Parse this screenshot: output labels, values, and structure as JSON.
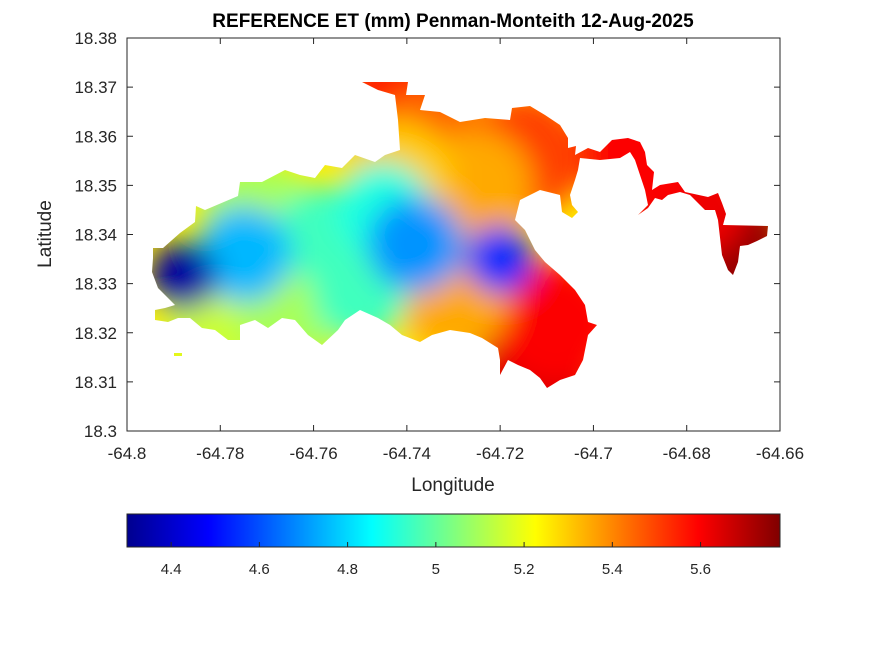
{
  "chart_data": {
    "type": "heatmap",
    "title": "REFERENCE ET (mm) Penman-Monteith 12-Aug-2025",
    "xlabel": "Longitude",
    "ylabel": "Latitude",
    "xlim": [
      -64.8,
      -64.66
    ],
    "ylim": [
      18.3,
      18.38
    ],
    "x_ticks": [
      "-64.8",
      "-64.78",
      "-64.76",
      "-64.74",
      "-64.72",
      "-64.7",
      "-64.68",
      "-64.66"
    ],
    "y_ticks": [
      "18.3",
      "18.31",
      "18.32",
      "18.33",
      "18.34",
      "18.35",
      "18.36",
      "18.37",
      "18.38"
    ],
    "grid": false,
    "colormap": "jet",
    "colorbar": {
      "orientation": "horizontal",
      "placement": "below",
      "range": [
        4.3,
        5.78
      ],
      "ticks": [
        "4.4",
        "4.6",
        "4.8",
        "5",
        "5.2",
        "5.4",
        "5.6"
      ]
    },
    "hotspots": [
      {
        "lon": -64.788,
        "lat": 18.3315,
        "value": 4.35
      },
      {
        "lon": -64.72,
        "lat": 18.335,
        "value": 4.55
      },
      {
        "lon": -64.738,
        "lat": 18.338,
        "value": 4.7
      },
      {
        "lon": -64.775,
        "lat": 18.336,
        "value": 4.75
      },
      {
        "lon": -64.758,
        "lat": 18.34,
        "value": 4.95
      },
      {
        "lon": -64.745,
        "lat": 18.345,
        "value": 4.9
      },
      {
        "lon": -64.75,
        "lat": 18.328,
        "value": 4.95
      },
      {
        "lon": -64.765,
        "lat": 18.325,
        "value": 5.1
      },
      {
        "lon": -64.772,
        "lat": 18.344,
        "value": 5.1
      },
      {
        "lon": -64.78,
        "lat": 18.322,
        "value": 5.15
      },
      {
        "lon": -64.742,
        "lat": 18.352,
        "value": 5.3
      },
      {
        "lon": -64.73,
        "lat": 18.327,
        "value": 5.35
      },
      {
        "lon": -64.725,
        "lat": 18.35,
        "value": 5.35
      },
      {
        "lon": -64.735,
        "lat": 18.358,
        "value": 5.45
      },
      {
        "lon": -64.715,
        "lat": 18.356,
        "value": 5.5
      },
      {
        "lon": -64.708,
        "lat": 18.322,
        "value": 5.6
      },
      {
        "lon": -64.712,
        "lat": 18.313,
        "value": 5.65
      },
      {
        "lon": -64.69,
        "lat": 18.357,
        "value": 5.6
      },
      {
        "lon": -64.68,
        "lat": 18.347,
        "value": 5.62
      },
      {
        "lon": -64.672,
        "lat": 18.338,
        "value": 5.75
      },
      {
        "lon": -64.74,
        "lat": 18.368,
        "value": 5.55
      }
    ]
  }
}
